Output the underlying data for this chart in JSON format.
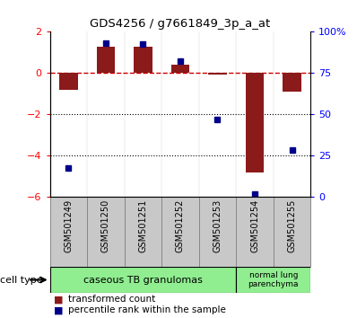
{
  "title": "GDS4256 / g7661849_3p_a_at",
  "samples": [
    "GSM501249",
    "GSM501250",
    "GSM501251",
    "GSM501252",
    "GSM501253",
    "GSM501254",
    "GSM501255"
  ],
  "red_bars": [
    -0.8,
    1.3,
    1.3,
    0.4,
    -0.05,
    -4.8,
    -0.9
  ],
  "blue_dots": [
    -4.6,
    1.45,
    1.4,
    0.6,
    -2.25,
    -5.85,
    -3.7
  ],
  "ylim_left": [
    -6,
    2
  ],
  "ylim_right": [
    0,
    100
  ],
  "yticks_left": [
    2,
    0,
    -2,
    -4,
    -6
  ],
  "yticks_right": [
    100,
    75,
    50,
    25,
    0
  ],
  "ytick_labels_right": [
    "100%",
    "75",
    "50",
    "25",
    "0"
  ],
  "legend_red_label": "transformed count",
  "legend_blue_label": "percentile rank within the sample",
  "bar_color": "#8B1A1A",
  "dot_color": "#00008B",
  "zero_line_color": "#CC0000",
  "cell_type_label": "cell type",
  "group1_label": "caseous TB granulomas",
  "group2_label": "normal lung\nparenchyma",
  "group_color": "#90EE90",
  "sample_box_color": "#C8C8C8"
}
